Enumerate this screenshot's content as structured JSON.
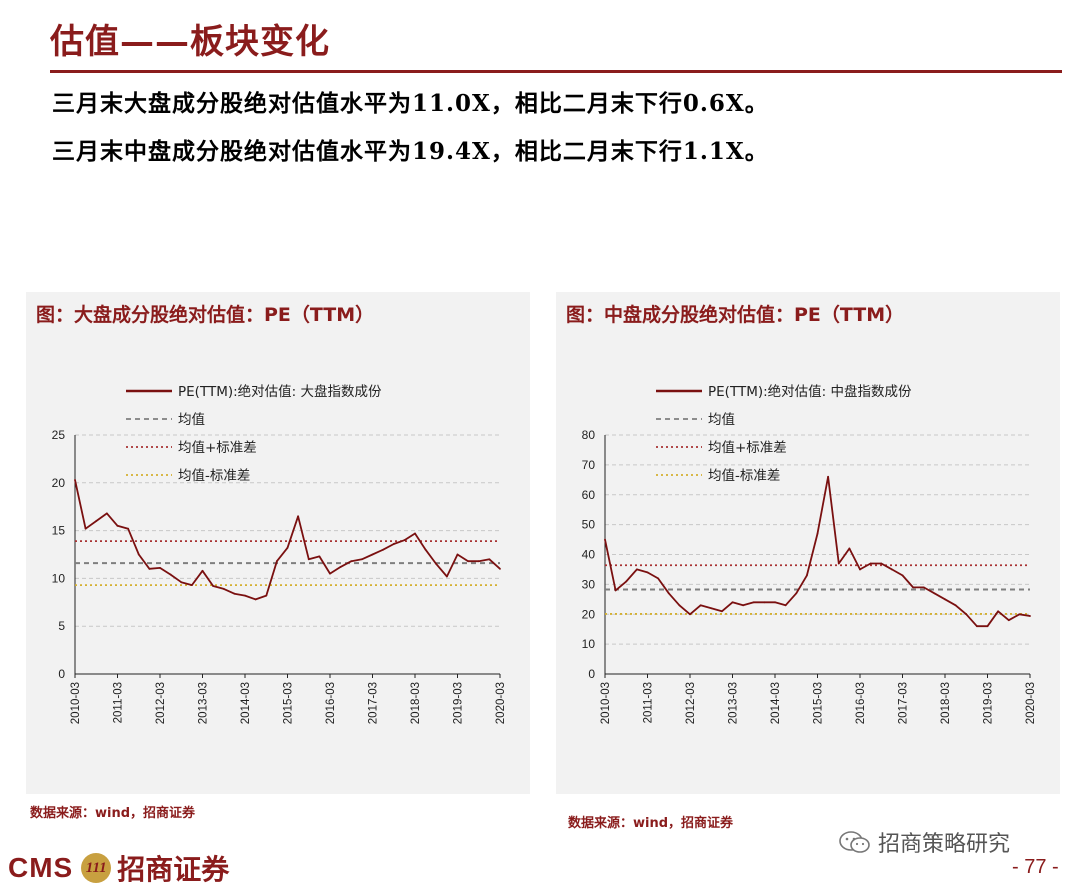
{
  "header": {
    "title": "估值——板块变化",
    "bullets": [
      "三月末大盘成分股绝对估值水平为11.0X，相比二月末下行0.6X。",
      "三月末中盘成分股绝对估值水平为19.4X，相比二月末下行1.1X。"
    ]
  },
  "charts_text": {
    "left": {
      "title": "图：大盘成分股绝对估值：PE（TTM）",
      "legend": [
        "PE(TTM):绝对估值: 大盘指数成份",
        "均值",
        "均值+标准差",
        "均值-标准差"
      ],
      "yticks": [
        "0",
        "5",
        "10",
        "15",
        "20",
        "25"
      ],
      "source": "数据来源：wind，招商证券"
    },
    "right": {
      "title": "图：中盘成分股绝对估值：PE（TTM）",
      "legend": [
        "PE(TTM):绝对估值: 中盘指数成份",
        "均值",
        "均值+标准差",
        "均值-标准差"
      ],
      "yticks": [
        "0",
        "10",
        "20",
        "30",
        "40",
        "50",
        "60",
        "70",
        "80"
      ],
      "source": "数据来源：wind，招商证券"
    },
    "xticks": [
      "2010-03",
      "2011-03",
      "2012-03",
      "2013-03",
      "2014-03",
      "2015-03",
      "2016-03",
      "2017-03",
      "2018-03",
      "2019-03",
      "2020-03"
    ]
  },
  "chart_data": [
    {
      "type": "line",
      "title": "图：大盘成分股绝对估值：PE（TTM）",
      "ylim": [
        0,
        25
      ],
      "x": [
        "2010-03",
        "2010-06",
        "2010-09",
        "2010-12",
        "2011-03",
        "2011-06",
        "2011-09",
        "2011-12",
        "2012-03",
        "2012-06",
        "2012-09",
        "2012-12",
        "2013-03",
        "2013-06",
        "2013-09",
        "2013-12",
        "2014-03",
        "2014-06",
        "2014-09",
        "2014-12",
        "2015-03",
        "2015-06",
        "2015-09",
        "2015-12",
        "2016-03",
        "2016-06",
        "2016-09",
        "2016-12",
        "2017-03",
        "2017-06",
        "2017-09",
        "2017-12",
        "2018-03",
        "2018-06",
        "2018-09",
        "2018-12",
        "2019-03",
        "2019-06",
        "2019-09",
        "2019-12",
        "2020-03"
      ],
      "series": [
        {
          "name": "PE(TTM):绝对估值: 大盘指数成份",
          "color": "#7a1010",
          "values": [
            20.3,
            15.2,
            16.0,
            16.8,
            15.5,
            15.2,
            12.5,
            11.0,
            11.1,
            10.4,
            9.6,
            9.3,
            10.8,
            9.2,
            8.9,
            8.4,
            8.2,
            7.8,
            8.2,
            11.8,
            13.2,
            16.5,
            12.0,
            12.3,
            10.5,
            11.2,
            11.8,
            12.0,
            12.5,
            13.0,
            13.6,
            14.0,
            14.7,
            13.0,
            11.5,
            10.2,
            12.5,
            11.8,
            11.8,
            12.0,
            11.0
          ]
        },
        {
          "name": "均值",
          "color": "#7f7f7f",
          "constant": 11.6
        },
        {
          "name": "均值+标准差",
          "color": "#a83232",
          "constant": 13.9
        },
        {
          "name": "均值-标准差",
          "color": "#d4b030",
          "constant": 9.3
        }
      ]
    },
    {
      "type": "line",
      "title": "图：中盘成分股绝对估值：PE（TTM）",
      "ylim": [
        0,
        80
      ],
      "x": [
        "2010-03",
        "2010-06",
        "2010-09",
        "2010-12",
        "2011-03",
        "2011-06",
        "2011-09",
        "2011-12",
        "2012-03",
        "2012-06",
        "2012-09",
        "2012-12",
        "2013-03",
        "2013-06",
        "2013-09",
        "2013-12",
        "2014-03",
        "2014-06",
        "2014-09",
        "2014-12",
        "2015-03",
        "2015-06",
        "2015-09",
        "2015-12",
        "2016-03",
        "2016-06",
        "2016-09",
        "2016-12",
        "2017-03",
        "2017-06",
        "2017-09",
        "2017-12",
        "2018-03",
        "2018-06",
        "2018-09",
        "2018-12",
        "2019-03",
        "2019-06",
        "2019-09",
        "2019-12",
        "2020-03"
      ],
      "series": [
        {
          "name": "PE(TTM):绝对估值: 中盘指数成份",
          "color": "#7a1010",
          "values": [
            45,
            28,
            31,
            35,
            34,
            32,
            27,
            23,
            20,
            23,
            22,
            21,
            24,
            23,
            24,
            24,
            24,
            23,
            27,
            33,
            47,
            66,
            37,
            42,
            35,
            37,
            37,
            35,
            33,
            29,
            29,
            27,
            25,
            23,
            20,
            16,
            16,
            21,
            18,
            20,
            19.4
          ]
        },
        {
          "name": "均值",
          "color": "#7f7f7f",
          "constant": 28.3
        },
        {
          "name": "均值+标准差",
          "color": "#a83232",
          "constant": 36.4
        },
        {
          "name": "均值-标准差",
          "color": "#d4b030",
          "constant": 20.1
        }
      ]
    }
  ],
  "footer": {
    "cms": "CMS",
    "badge": "111",
    "company": "招商证券",
    "wechat": "招商策略研究",
    "page": "- 77 -"
  }
}
